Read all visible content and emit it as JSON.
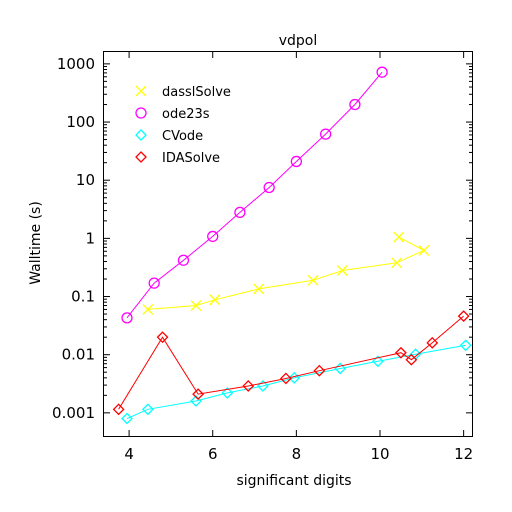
{
  "chart_data": {
    "type": "line",
    "title": "vdpol",
    "xlabel": "significant digits",
    "ylabel": "Walltime (s)",
    "xlim": [
      3.4,
      12.2
    ],
    "ylim": [
      0.0004,
      1600
    ],
    "yscale": "log",
    "grid": false,
    "legend_position": "top-left",
    "x_ticks": [
      4,
      6,
      8,
      10,
      12
    ],
    "x_tick_labels": [
      "4",
      "6",
      "8",
      "10",
      "12"
    ],
    "y_ticks": [
      0.001,
      0.01,
      0.1,
      1,
      10,
      100,
      1000
    ],
    "y_tick_labels": [
      "0.001",
      "0.01",
      "0.1",
      "1",
      "10",
      "100",
      "1000"
    ],
    "series": [
      {
        "name": "dasslSolve",
        "color": "#ffff00",
        "marker": "x",
        "x": [
          4.45,
          5.6,
          6.05,
          7.1,
          8.4,
          9.1,
          10.4,
          11.05,
          10.45
        ],
        "y": [
          0.06,
          0.07,
          0.088,
          0.135,
          0.19,
          0.28,
          0.38,
          0.62,
          1.05
        ]
      },
      {
        "name": "ode23s",
        "color": "#ff00ff",
        "marker": "circle",
        "x": [
          3.95,
          4.6,
          5.3,
          6.0,
          6.65,
          7.35,
          8.0,
          8.7,
          9.4,
          10.05
        ],
        "y": [
          0.043,
          0.17,
          0.42,
          1.08,
          2.8,
          7.5,
          21,
          62,
          200,
          720
        ]
      },
      {
        "name": "CVode",
        "color": "#00ffff",
        "marker": "diamond",
        "x": [
          3.95,
          4.45,
          5.6,
          6.35,
          7.2,
          7.95,
          9.05,
          9.95,
          10.85,
          12.05
        ],
        "y": [
          0.0008,
          0.00115,
          0.0016,
          0.0022,
          0.0029,
          0.004,
          0.0058,
          0.0077,
          0.0102,
          0.0145
        ]
      },
      {
        "name": "IDASolve",
        "color": "#ff0000",
        "marker": "diamond",
        "x": [
          3.75,
          4.8,
          5.65,
          6.85,
          7.75,
          8.55,
          10.5,
          10.75,
          11.25,
          12.0
        ],
        "y": [
          0.00115,
          0.02,
          0.0021,
          0.0029,
          0.0039,
          0.0053,
          0.0108,
          0.0082,
          0.016,
          0.046
        ]
      }
    ]
  }
}
